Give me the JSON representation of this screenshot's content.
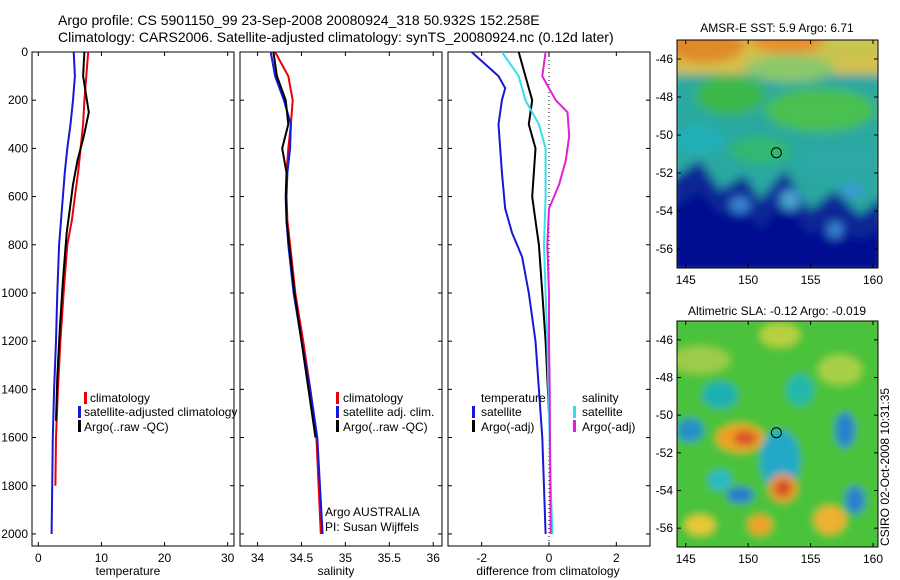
{
  "header": {
    "line1": "Argo profile: CS 5901150_99 23-Sep-2008 20080924_318 50.932S 152.258E",
    "line2": "Climatology: CARS2006. Satellite-adjusted climatology: synTS_20080924.nc (0.12d later)"
  },
  "side_text": "CSIRO 02-Oct-2008 10:31:35",
  "colors": {
    "climatology": "#e8000b",
    "satellite": "#1717d8",
    "argo": "#000000",
    "sat_salinity": "#33e0e8",
    "argo_adj_salinity": "#e020d8"
  },
  "chart_data": [
    {
      "type": "line",
      "xlabel": "temperature",
      "ylabel": "",
      "xlim": [
        -1,
        31
      ],
      "ylim": [
        2050,
        0
      ],
      "xticks": [
        0,
        10,
        20,
        30
      ],
      "yticks": [
        0,
        200,
        400,
        600,
        800,
        1000,
        1200,
        1400,
        1600,
        1800,
        2000
      ],
      "legend": {
        "placement": "bottom-right",
        "entries": [
          "climatology",
          "satellite-adjusted climatology",
          "Argo(..raw -QC)"
        ]
      },
      "series": [
        {
          "name": "climatology",
          "color": "#e8000b",
          "x": [
            7.9,
            7.6,
            7.3,
            7.1,
            6.7,
            6.3,
            5.8,
            5.3,
            4.6,
            4.0,
            3.5,
            3.1,
            2.8,
            2.7
          ],
          "y": [
            0,
            100,
            200,
            300,
            400,
            500,
            600,
            700,
            800,
            1000,
            1200,
            1400,
            1600,
            1800
          ]
        },
        {
          "name": "satellite-adjusted climatology",
          "color": "#1717d8",
          "x": [
            5.6,
            5.8,
            5.5,
            5.1,
            4.6,
            4.2,
            3.9,
            3.6,
            3.3,
            3.0,
            2.8,
            2.5,
            2.3,
            2.1
          ],
          "y": [
            0,
            100,
            200,
            300,
            400,
            500,
            600,
            700,
            800,
            1000,
            1200,
            1400,
            1600,
            2000
          ]
        },
        {
          "name": "Argo(..raw -QC)",
          "color": "#000000",
          "x": [
            7.3,
            7.1,
            7.7,
            8.0,
            7.2,
            6.2,
            5.5,
            5.0,
            4.5,
            3.9,
            3.4,
            3.0,
            2.8
          ],
          "y": [
            0,
            100,
            200,
            250,
            350,
            450,
            550,
            650,
            750,
            950,
            1150,
            1350,
            1530
          ]
        }
      ]
    },
    {
      "type": "line",
      "xlabel": "salinity",
      "ylabel": "",
      "xlim": [
        33.8,
        36.1
      ],
      "ylim": [
        2050,
        0
      ],
      "xticks": [
        34,
        34.5,
        35,
        35.5,
        36
      ],
      "legend": {
        "placement": "bottom-right",
        "entries": [
          "climatology",
          "satellite adj. clim.",
          "Argo(..raw -QC)"
        ]
      },
      "annotation": [
        "Argo AUSTRALIA",
        "PI: Susan Wijffels"
      ],
      "series": [
        {
          "name": "climatology",
          "color": "#e8000b",
          "x": [
            34.2,
            34.35,
            34.4,
            34.38,
            34.35,
            34.33,
            34.33,
            34.34,
            34.37,
            34.43,
            34.52,
            34.6,
            34.67,
            34.72
          ],
          "y": [
            0,
            100,
            200,
            300,
            400,
            500,
            600,
            700,
            800,
            1000,
            1200,
            1400,
            1600,
            2000
          ]
        },
        {
          "name": "satellite adj. clim.",
          "color": "#1717d8",
          "x": [
            34.15,
            34.2,
            34.3,
            34.38,
            34.37,
            34.34,
            34.33,
            34.33,
            34.35,
            34.41,
            34.5,
            34.6,
            34.68,
            34.74
          ],
          "y": [
            0,
            100,
            200,
            300,
            400,
            500,
            600,
            700,
            800,
            1000,
            1200,
            1400,
            1600,
            2000
          ]
        },
        {
          "name": "Argo(..raw -QC)",
          "color": "#000000",
          "x": [
            34.18,
            34.22,
            34.32,
            34.35,
            34.28,
            34.33,
            34.32,
            34.33,
            34.36,
            34.42,
            34.5,
            34.58,
            34.66
          ],
          "y": [
            0,
            100,
            200,
            300,
            400,
            500,
            600,
            700,
            800,
            1000,
            1200,
            1400,
            1600
          ]
        }
      ]
    },
    {
      "type": "line",
      "xlabel": "difference from climatology",
      "ylabel": "",
      "xlim": [
        -3,
        3
      ],
      "ylim": [
        2050,
        0
      ],
      "xticks": [
        -2,
        0,
        2
      ],
      "legend": {
        "placement": "bottom",
        "groups": [
          {
            "title": "temperature",
            "entries": [
              "satellite",
              "Argo(-adj)"
            ]
          },
          {
            "title": "salinity",
            "entries": [
              "satellite",
              "Argo(-adj)"
            ]
          }
        ]
      },
      "series": [
        {
          "name": "temperature satellite",
          "color": "#1717d8",
          "x": [
            -2.3,
            -1.5,
            -1.3,
            -1.4,
            -1.5,
            -1.4,
            -1.3,
            -1.1,
            -0.8,
            -0.6,
            -0.4,
            -0.3,
            -0.2,
            -0.1
          ],
          "y": [
            0,
            100,
            150,
            200,
            300,
            500,
            650,
            750,
            850,
            1000,
            1200,
            1400,
            1600,
            2000
          ]
        },
        {
          "name": "temperature Argo(-adj)",
          "color": "#000000",
          "x": [
            -0.9,
            -0.7,
            -0.5,
            -0.6,
            -0.4,
            -0.5,
            -0.4,
            -0.3,
            -0.2,
            -0.1,
            0.0
          ],
          "y": [
            0,
            100,
            200,
            300,
            400,
            600,
            700,
            800,
            1000,
            1200,
            1500
          ]
        },
        {
          "name": "salinity satellite",
          "color": "#33e0e8",
          "x": [
            -1.4,
            -0.9,
            -0.7,
            -0.3,
            -0.1,
            -0.1,
            -0.15,
            -0.1,
            -0.05,
            0.0,
            0.05,
            0.1
          ],
          "y": [
            0,
            100,
            200,
            300,
            400,
            600,
            800,
            1000,
            1200,
            1500,
            1800,
            2000
          ]
        },
        {
          "name": "salinity Argo(-adj)",
          "color": "#e020d8",
          "x": [
            -0.1,
            -0.2,
            0.2,
            0.55,
            0.6,
            0.5,
            0.3,
            0.0,
            -0.05,
            0.0,
            0.0,
            0.02,
            0.03,
            0.05
          ],
          "y": [
            0,
            100,
            200,
            250,
            350,
            450,
            550,
            650,
            800,
            1000,
            1200,
            1400,
            1600,
            2000
          ]
        }
      ]
    },
    {
      "type": "heatmap",
      "title": "AMSR-E SST: 5.9 Argo: 6.71",
      "xlim": [
        144.3,
        160.4
      ],
      "ylim": [
        -57,
        -45
      ],
      "xticks": [
        145,
        150,
        155,
        160
      ],
      "yticks": [
        -46,
        -48,
        -50,
        -52,
        -54,
        -56
      ],
      "marker": {
        "x": 152.258,
        "y": -50.932
      }
    },
    {
      "type": "heatmap",
      "title": "Altimetric SLA: -0.12 Argo: -0.019",
      "xlim": [
        144.3,
        160.4
      ],
      "ylim": [
        -57,
        -45
      ],
      "xticks": [
        145,
        150,
        155,
        160
      ],
      "yticks": [
        -46,
        -48,
        -50,
        -52,
        -54,
        -56
      ],
      "marker": {
        "x": 152.258,
        "y": -50.932
      }
    }
  ]
}
